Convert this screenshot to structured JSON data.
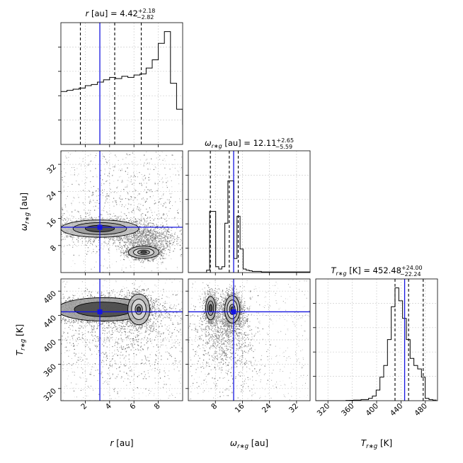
{
  "chart_data": {
    "type": "corner",
    "parameters": [
      {
        "key": "r",
        "axis_label": "r [au]",
        "axis_sym": "r",
        "axis_sub": "",
        "axis_unit": "[au]",
        "title_prefix": "r [au] = ",
        "median": "4.42",
        "err_plus": "+2.18",
        "err_minus": "−2.82",
        "range": [
          0,
          10
        ],
        "ticks": [
          2,
          4,
          6,
          8
        ],
        "truth": 3.2,
        "quantiles": [
          1.6,
          4.42,
          6.6
        ]
      },
      {
        "key": "omega",
        "axis_label": "ω_{r*g} [au]",
        "axis_sym": "ω",
        "axis_sub": "r∗g",
        "axis_unit": "[au]",
        "title_prefix": " [au] = ",
        "median": "12.11",
        "err_plus": "+2.65",
        "err_minus": "−5.59",
        "range": [
          0,
          36
        ],
        "ticks": [
          8,
          16,
          24,
          32
        ],
        "truth": 13.4,
        "quantiles": [
          6.52,
          12.11,
          14.76
        ]
      },
      {
        "key": "T",
        "axis_label": "T_{r*g} [K]",
        "axis_sym": "T",
        "axis_sub": "r∗g",
        "axis_unit": "[K]",
        "title_prefix": " [K] = ",
        "median": "452.48",
        "err_plus": "+24.00",
        "err_minus": "−22.24",
        "range": [
          300,
          500
        ],
        "ticks": [
          320,
          360,
          400,
          440,
          480
        ],
        "truth": 446,
        "quantiles": [
          430.2,
          452.48,
          476.5
        ]
      }
    ],
    "histograms": {
      "r": {
        "edges_start": 0,
        "bin_width": 0.5,
        "values": [
          0.45,
          0.46,
          0.47,
          0.48,
          0.5,
          0.51,
          0.53,
          0.55,
          0.57,
          0.56,
          0.58,
          0.57,
          0.59,
          0.6,
          0.65,
          0.72,
          0.86,
          0.96,
          0.52,
          0.3,
          0.17,
          0.1,
          0.06,
          0.03,
          0.01
        ]
      },
      "omega": {
        "edges_start": 0,
        "bin_width": 0.9,
        "values": [
          0,
          0,
          0,
          0,
          0,
          0,
          0.02,
          0.52,
          0.52,
          0.05,
          0.03,
          0.05,
          0.42,
          0.78,
          0.78,
          0.12,
          0.48,
          0.2,
          0.03,
          0.02,
          0.015,
          0.01,
          0.01,
          0.01,
          0.005,
          0.005,
          0.005,
          0.005,
          0.005,
          0.005,
          0.005,
          0.005,
          0.005,
          0.005,
          0.005,
          0.005,
          0.005,
          0.005,
          0.005,
          0.005
        ]
      },
      "T": {
        "edges_start": 300,
        "bin_width": 6.2,
        "values": [
          0,
          0,
          0,
          0,
          0,
          0,
          0,
          0,
          0.002,
          0.003,
          0.005,
          0.005,
          0.01,
          0.01,
          0.02,
          0.04,
          0.09,
          0.2,
          0.3,
          0.52,
          0.8,
          0.96,
          0.85,
          0.7,
          0.52,
          0.36,
          0.3,
          0.27,
          0.2,
          0.02,
          0.01,
          0.005
        ]
      }
    },
    "title_r": "r [au] = 4.42",
    "grid": true
  }
}
